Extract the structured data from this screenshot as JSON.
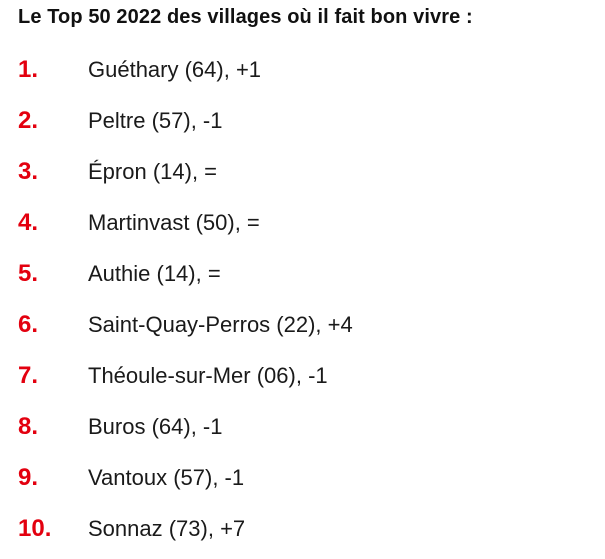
{
  "title": "Le Top 50 2022 des villages où il fait bon vivre :",
  "colors": {
    "rank_number": "#e3000f",
    "text": "#1a1a1a"
  },
  "ranking": [
    {
      "rank": "1.",
      "text": "Guéthary (64), +1"
    },
    {
      "rank": "2.",
      "text": "Peltre (57), -1"
    },
    {
      "rank": "3.",
      "text": "Épron (14), ="
    },
    {
      "rank": "4.",
      "text": "Martinvast (50), ="
    },
    {
      "rank": "5.",
      "text": "Authie (14), ="
    },
    {
      "rank": "6.",
      "text": "Saint-Quay-Perros (22), +4"
    },
    {
      "rank": "7.",
      "text": "Théoule-sur-Mer (06), -1"
    },
    {
      "rank": "8.",
      "text": "Buros (64), -1"
    },
    {
      "rank": "9.",
      "text": "Vantoux (57), -1"
    },
    {
      "rank": "10.",
      "text": "Sonnaz (73), +7"
    }
  ]
}
